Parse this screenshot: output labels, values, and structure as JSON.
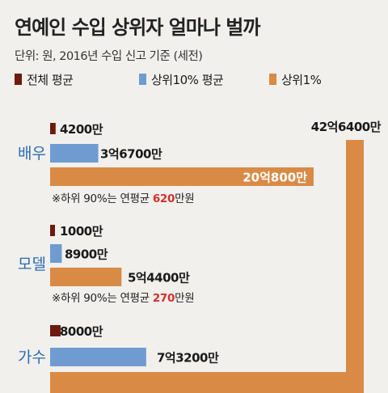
{
  "chart_data": {
    "type": "bar",
    "orientation": "horizontal",
    "title": "연예인 수입 상위자 얼마나 벌까",
    "subtitle": "단위: 원, 2016년 수입 신고 기준 (세전)",
    "categories": [
      "배우",
      "모델",
      "가수"
    ],
    "series": [
      {
        "name": "전체 평균",
        "color": "#6e1a0e",
        "values": [
          4200,
          1000,
          8000
        ],
        "labels": [
          "4200만",
          "1000만",
          "8000만"
        ]
      },
      {
        "name": "상위10% 평균",
        "color": "#6f9bd1",
        "values": [
          36700,
          8900,
          73200
        ],
        "labels": [
          "3억6700만",
          "8900만",
          "7억3200만"
        ]
      },
      {
        "name": "상위1%",
        "color": "#d98a45",
        "values": [
          200800,
          54400,
          426400
        ],
        "labels": [
          "20억800만",
          "5억4400만",
          "42억6400만"
        ]
      }
    ],
    "value_unit": "만원",
    "annotations": [
      {
        "category": "배우",
        "prefix": "※하위 90%는 연평균 ",
        "value": "620",
        "suffix": "만원"
      },
      {
        "category": "모델",
        "prefix": "※하위 90%는 연평균 ",
        "value": "270",
        "suffix": "만원"
      }
    ],
    "grid": false,
    "legend_position": "top"
  }
}
